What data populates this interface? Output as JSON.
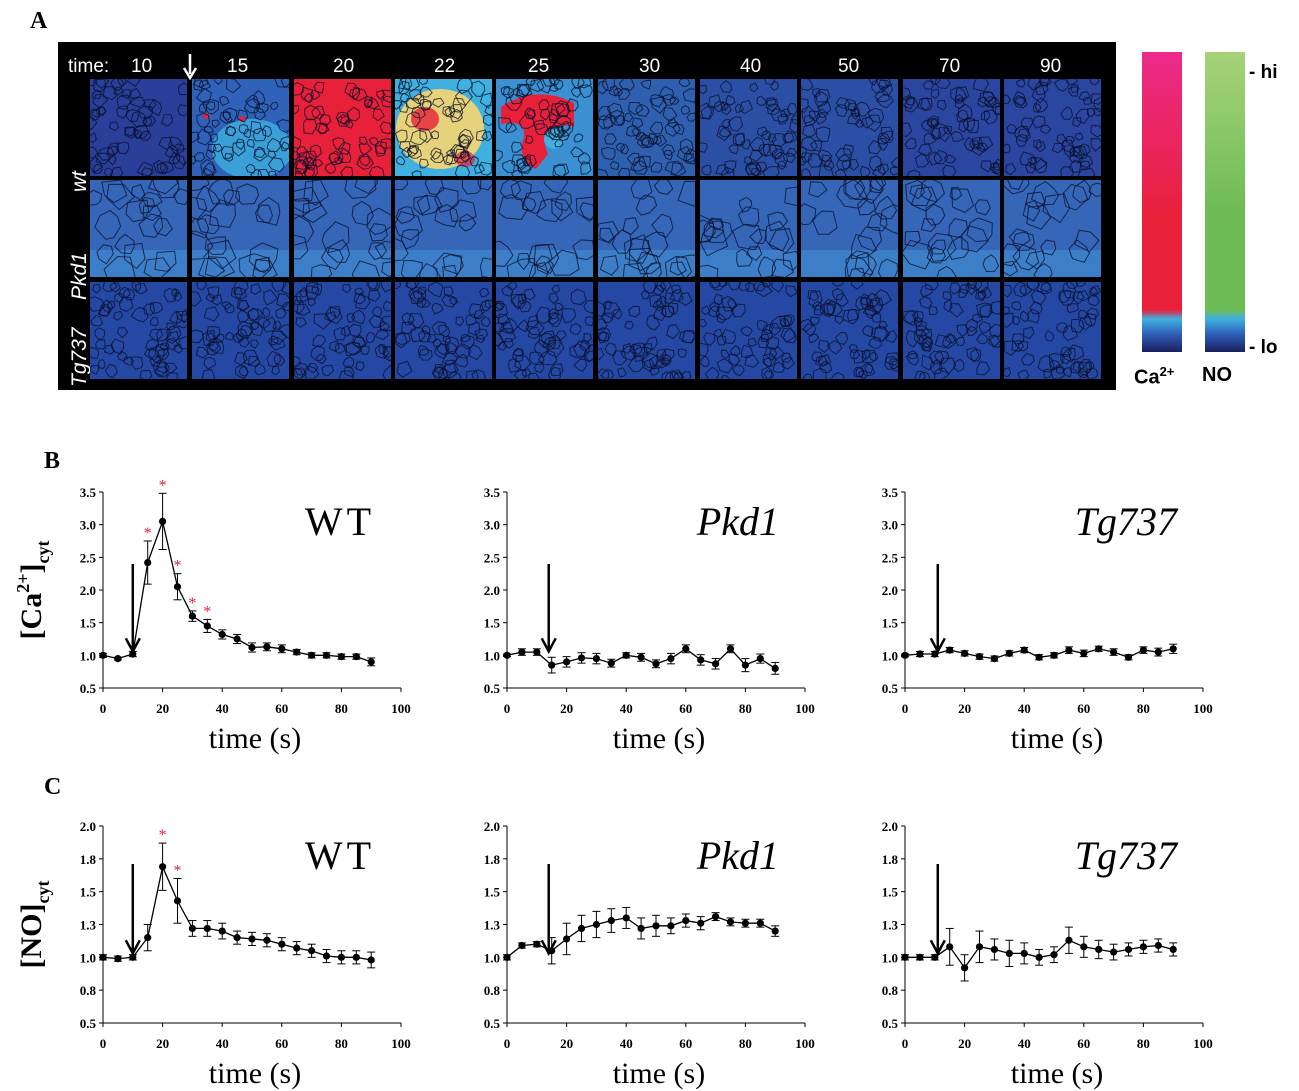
{
  "panel_labels": {
    "a": "A",
    "b": "B",
    "c": "C"
  },
  "panel_a": {
    "time_prefix": "time:",
    "times": [
      "10",
      "15",
      "20",
      "22",
      "25",
      "30",
      "40",
      "50",
      "70",
      "90"
    ],
    "rows": [
      "wt",
      "Pkd1",
      "Tg737"
    ],
    "scale": {
      "hi": "- hi",
      "lo": "- lo",
      "ca_label": "Ca",
      "ca_sup": "2+",
      "no_label": "NO"
    },
    "colors": {
      "low": "#2a3f9a",
      "cyan": "#3fb0e0",
      "red": "#e8203a",
      "magenta": "#ec2a8a",
      "green": "#6cbb55",
      "light_green": "#a6d27a",
      "yellow": "#e6d27a"
    }
  },
  "chart_data": [
    {
      "type": "line",
      "panel": "B",
      "title": "WT",
      "ylabel": "[Ca2+]cyt",
      "xlabel": "time (s)",
      "xlim": [
        0,
        100
      ],
      "ylim": [
        0.5,
        3.5
      ],
      "xticks": [
        "0",
        "20",
        "40",
        "60",
        "80",
        "100"
      ],
      "yticks": [
        "0.5",
        "1.0",
        "1.5",
        "2.0",
        "2.5",
        "3.0",
        "3.5"
      ],
      "arrow_x": 10,
      "x": [
        0,
        5,
        10,
        15,
        20,
        25,
        30,
        35,
        40,
        45,
        50,
        55,
        60,
        65,
        70,
        75,
        80,
        85,
        90
      ],
      "y": [
        1.0,
        0.95,
        1.02,
        2.42,
        3.05,
        2.05,
        1.6,
        1.45,
        1.32,
        1.25,
        1.12,
        1.13,
        1.1,
        1.05,
        1.0,
        1.0,
        0.98,
        0.98,
        0.9
      ],
      "err": [
        0.03,
        0.02,
        0.04,
        0.33,
        0.43,
        0.2,
        0.08,
        0.1,
        0.07,
        0.07,
        0.07,
        0.06,
        0.06,
        0.04,
        0.04,
        0.04,
        0.04,
        0.04,
        0.06
      ],
      "sig": [
        15,
        20,
        25,
        30,
        35
      ],
      "sig_mark": "*"
    },
    {
      "type": "line",
      "panel": "B",
      "title": "Pkd1",
      "xlabel": "time (s)",
      "xlim": [
        0,
        100
      ],
      "ylim": [
        0.5,
        3.5
      ],
      "xticks": [
        "0",
        "20",
        "40",
        "60",
        "80",
        "100"
      ],
      "yticks": [
        "0.5",
        "1.0",
        "1.5",
        "2.0",
        "2.5",
        "3.0",
        "3.5"
      ],
      "arrow_x": 14,
      "x": [
        0,
        5,
        10,
        15,
        20,
        25,
        30,
        35,
        40,
        45,
        50,
        55,
        60,
        65,
        70,
        75,
        80,
        85,
        90
      ],
      "y": [
        1.0,
        1.05,
        1.05,
        0.85,
        0.9,
        0.96,
        0.95,
        0.88,
        1.0,
        0.97,
        0.87,
        0.95,
        1.1,
        0.93,
        0.87,
        1.1,
        0.85,
        0.95,
        0.8
      ],
      "err": [
        0.02,
        0.05,
        0.05,
        0.12,
        0.08,
        0.08,
        0.08,
        0.06,
        0.04,
        0.06,
        0.06,
        0.08,
        0.06,
        0.08,
        0.08,
        0.06,
        0.1,
        0.07,
        0.09
      ],
      "sig": [],
      "sig_mark": "*"
    },
    {
      "type": "line",
      "panel": "B",
      "title": "Tg737",
      "xlabel": "time (s)",
      "xlim": [
        0,
        100
      ],
      "ylim": [
        0.5,
        3.5
      ],
      "xticks": [
        "0",
        "20",
        "40",
        "60",
        "80",
        "100"
      ],
      "yticks": [
        "0.5",
        "1.0",
        "1.5",
        "2.0",
        "2.5",
        "3.0",
        "3.5"
      ],
      "arrow_x": 11,
      "x": [
        0,
        5,
        10,
        15,
        20,
        25,
        30,
        35,
        40,
        45,
        50,
        55,
        60,
        65,
        70,
        75,
        80,
        85,
        90
      ],
      "y": [
        1.0,
        1.02,
        1.02,
        1.08,
        1.03,
        0.98,
        0.95,
        1.03,
        1.08,
        0.97,
        1.0,
        1.08,
        1.03,
        1.1,
        1.05,
        0.97,
        1.08,
        1.05,
        1.1
      ],
      "err": [
        0.02,
        0.04,
        0.04,
        0.04,
        0.04,
        0.04,
        0.04,
        0.04,
        0.04,
        0.04,
        0.04,
        0.05,
        0.05,
        0.04,
        0.05,
        0.04,
        0.05,
        0.06,
        0.07
      ],
      "sig": [],
      "sig_mark": "*"
    },
    {
      "type": "line",
      "panel": "C",
      "title": "WT",
      "ylabel": "[NO]cyt",
      "xlabel": "time (s)",
      "xlim": [
        0,
        100
      ],
      "ylim": [
        0.5,
        2.0
      ],
      "xticks": [
        "0",
        "20",
        "40",
        "60",
        "80",
        "100"
      ],
      "yticks": [
        "0.5",
        "0.8",
        "1.0",
        "1.3",
        "1.5",
        "1.8",
        "2.0"
      ],
      "arrow_x": 10,
      "x": [
        0,
        5,
        10,
        15,
        20,
        25,
        30,
        35,
        40,
        45,
        50,
        55,
        60,
        65,
        70,
        75,
        80,
        85,
        90
      ],
      "y": [
        1.0,
        0.99,
        1.0,
        1.15,
        1.69,
        1.43,
        1.22,
        1.22,
        1.2,
        1.15,
        1.14,
        1.13,
        1.1,
        1.07,
        1.05,
        1.01,
        1.0,
        1.0,
        0.98
      ],
      "err": [
        0.02,
        0.02,
        0.02,
        0.1,
        0.18,
        0.17,
        0.06,
        0.06,
        0.06,
        0.05,
        0.05,
        0.05,
        0.05,
        0.05,
        0.05,
        0.05,
        0.05,
        0.05,
        0.06
      ],
      "sig": [
        20,
        25
      ],
      "sig_mark": "*"
    },
    {
      "type": "line",
      "panel": "C",
      "title": "Pkd1",
      "xlabel": "time (s)",
      "xlim": [
        0,
        100
      ],
      "ylim": [
        0.5,
        2.0
      ],
      "xticks": [
        "0",
        "20",
        "40",
        "60",
        "80",
        "100"
      ],
      "yticks": [
        "0.5",
        "0.8",
        "1.0",
        "1.3",
        "1.5",
        "1.8",
        "2.0"
      ],
      "arrow_x": 14,
      "x": [
        0,
        5,
        10,
        15,
        20,
        25,
        30,
        35,
        40,
        45,
        50,
        55,
        60,
        65,
        70,
        75,
        80,
        85,
        90
      ],
      "y": [
        1.0,
        1.09,
        1.1,
        1.05,
        1.14,
        1.22,
        1.25,
        1.28,
        1.3,
        1.22,
        1.24,
        1.24,
        1.28,
        1.26,
        1.31,
        1.27,
        1.26,
        1.26,
        1.2
      ],
      "err": [
        0.02,
        0.02,
        0.02,
        0.1,
        0.12,
        0.1,
        0.1,
        0.09,
        0.08,
        0.08,
        0.08,
        0.06,
        0.05,
        0.05,
        0.03,
        0.03,
        0.03,
        0.03,
        0.04
      ],
      "sig": [],
      "sig_mark": "*"
    },
    {
      "type": "line",
      "panel": "C",
      "title": "Tg737",
      "xlabel": "time (s)",
      "xlim": [
        0,
        100
      ],
      "ylim": [
        0.5,
        2.0
      ],
      "xticks": [
        "0",
        "20",
        "40",
        "60",
        "80",
        "100"
      ],
      "yticks": [
        "0.5",
        "0.8",
        "1.0",
        "1.3",
        "1.5",
        "1.8",
        "2.0"
      ],
      "arrow_x": 11,
      "x": [
        0,
        5,
        10,
        15,
        20,
        25,
        30,
        35,
        40,
        45,
        50,
        55,
        60,
        65,
        70,
        75,
        80,
        85,
        90
      ],
      "y": [
        1.0,
        1.0,
        1.0,
        1.08,
        0.92,
        1.08,
        1.06,
        1.03,
        1.03,
        1.0,
        1.02,
        1.13,
        1.08,
        1.06,
        1.04,
        1.06,
        1.08,
        1.09,
        1.06
      ],
      "err": [
        0.02,
        0.02,
        0.02,
        0.14,
        0.1,
        0.12,
        0.08,
        0.1,
        0.08,
        0.06,
        0.06,
        0.1,
        0.08,
        0.07,
        0.06,
        0.05,
        0.05,
        0.05,
        0.05
      ],
      "sig": [],
      "sig_mark": "*"
    }
  ]
}
